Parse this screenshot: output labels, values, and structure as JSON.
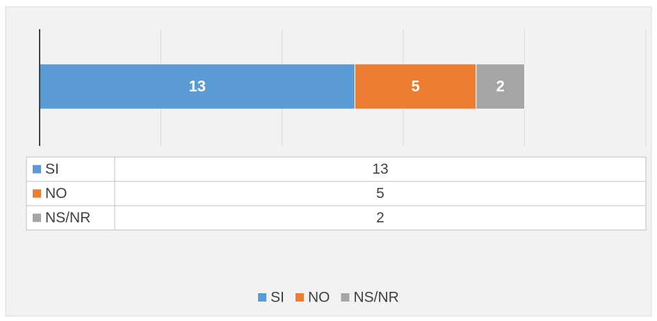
{
  "chart_data": {
    "type": "stacked_bar_horizontal",
    "categories": [
      null
    ],
    "series": [
      {
        "name": "SI",
        "color": "#5b9bd5",
        "values": [
          13
        ]
      },
      {
        "name": "NO",
        "color": "#ed7d31",
        "values": [
          5
        ]
      },
      {
        "name": "NS/NR",
        "color": "#a5a5a5",
        "values": [
          2
        ]
      }
    ],
    "xlim": [
      0,
      25
    ],
    "xticks": [
      0,
      5,
      10,
      15,
      20,
      25
    ],
    "grid": true,
    "data_table": true,
    "legend": "bottom"
  }
}
